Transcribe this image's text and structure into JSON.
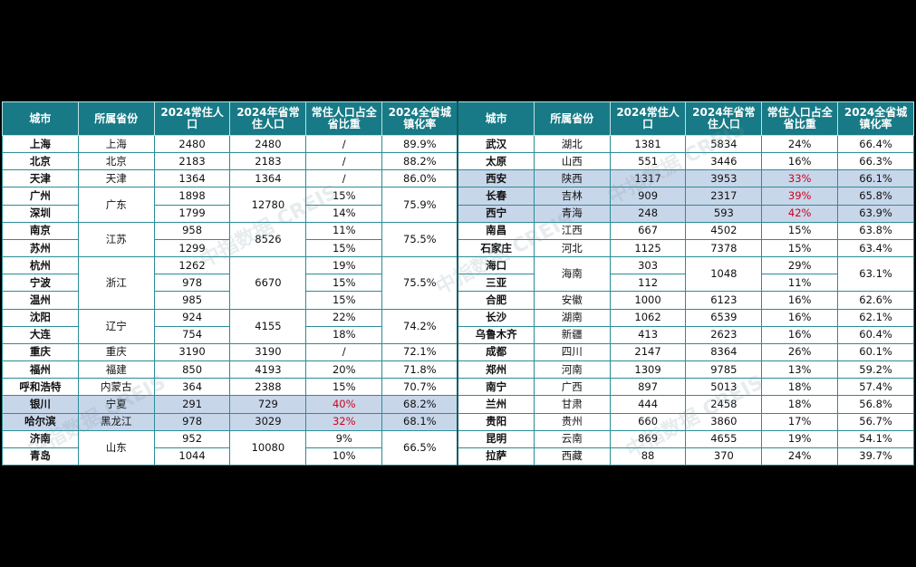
{
  "header": {
    "columns": [
      "城市",
      "所属省份",
      "2024常住人口",
      "2024年省常住人口",
      "常住人口占全省比重",
      "2024全省城镇化率"
    ]
  },
  "watermark": "中指数据 CREIS",
  "left": {
    "highlighted_rows": [
      15,
      16
    ],
    "rows": [
      [
        "上海",
        "上海",
        2480,
        2480,
        "/",
        "89.9%"
      ],
      [
        "北京",
        "北京",
        2183,
        2183,
        "/",
        "88.2%"
      ],
      [
        "天津",
        "天津",
        1364,
        1364,
        "/",
        "86.0%"
      ],
      [
        "广州",
        "广东",
        1898,
        12780,
        "15%",
        "75.9%"
      ],
      [
        "深圳",
        null,
        1799,
        null,
        "14%",
        null
      ],
      [
        "南京",
        "江苏",
        958,
        8526,
        "11%",
        "75.5%"
      ],
      [
        "苏州",
        null,
        1299,
        null,
        "15%",
        null
      ],
      [
        "杭州",
        "浙江",
        1262,
        6670,
        "19%",
        "75.5%"
      ],
      [
        "宁波",
        null,
        978,
        null,
        "15%",
        null
      ],
      [
        "温州",
        null,
        985,
        null,
        "15%",
        null
      ],
      [
        "沈阳",
        "辽宁",
        924,
        4155,
        "22%",
        "74.2%"
      ],
      [
        "大连",
        null,
        754,
        null,
        "18%",
        null
      ],
      [
        "重庆",
        "重庆",
        3190,
        3190,
        "/",
        "72.1%"
      ],
      [
        "福州",
        "福建",
        850,
        4193,
        "20%",
        "71.8%"
      ],
      [
        "呼和浩特",
        "内蒙古",
        364,
        2388,
        "15%",
        "70.7%"
      ],
      [
        "银川",
        "宁夏",
        291,
        729,
        "40%",
        "68.2%"
      ],
      [
        "哈尔滨",
        "黑龙江",
        978,
        3029,
        "32%",
        "68.1%"
      ],
      [
        "济南",
        "山东",
        952,
        10080,
        "9%",
        "66.5%"
      ],
      [
        "青岛",
        null,
        1044,
        null,
        "10%",
        null
      ]
    ]
  },
  "right": {
    "highlighted_rows": [
      2,
      3,
      4
    ],
    "rows": [
      [
        "武汉",
        "湖北",
        1381,
        5834,
        "24%",
        "66.4%"
      ],
      [
        "太原",
        "山西",
        551,
        3446,
        "16%",
        "66.3%"
      ],
      [
        "西安",
        "陕西",
        1317,
        3953,
        "33%",
        "66.1%"
      ],
      [
        "长春",
        "吉林",
        909,
        2317,
        "39%",
        "65.8%"
      ],
      [
        "西宁",
        "青海",
        248,
        593,
        "42%",
        "63.9%"
      ],
      [
        "南昌",
        "江西",
        667,
        4502,
        "15%",
        "63.8%"
      ],
      [
        "石家庄",
        "河北",
        1125,
        7378,
        "15%",
        "63.4%"
      ],
      [
        "海口",
        "海南",
        303,
        1048,
        "29%",
        "63.1%"
      ],
      [
        "三亚",
        null,
        112,
        null,
        "11%",
        null
      ],
      [
        "合肥",
        "安徽",
        1000,
        6123,
        "16%",
        "62.6%"
      ],
      [
        "长沙",
        "湖南",
        1062,
        6539,
        "16%",
        "62.1%"
      ],
      [
        "乌鲁木齐",
        "新疆",
        413,
        2623,
        "16%",
        "60.4%"
      ],
      [
        "成都",
        "四川",
        2147,
        8364,
        "26%",
        "60.1%"
      ],
      [
        "郑州",
        "河南",
        1309,
        9785,
        "13%",
        "59.2%"
      ],
      [
        "南宁",
        "广西",
        897,
        5013,
        "18%",
        "57.4%"
      ],
      [
        "兰州",
        "甘肃",
        444,
        2458,
        "18%",
        "56.8%"
      ],
      [
        "贵阳",
        "贵州",
        660,
        3860,
        "17%",
        "56.7%"
      ],
      [
        "昆明",
        "云南",
        869,
        4655,
        "19%",
        "54.1%"
      ],
      [
        "拉萨",
        "西藏",
        88,
        370,
        "24%",
        "39.7%"
      ]
    ]
  }
}
